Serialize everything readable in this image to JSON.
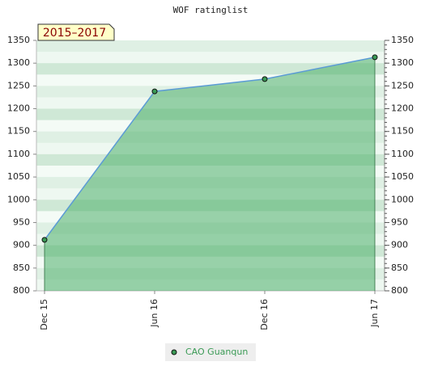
{
  "chart_data": {
    "type": "area",
    "title": "WOF ratinglist",
    "annotation": "2015–2017",
    "categories": [
      "Dec 15",
      "Jun 16",
      "Dec 16",
      "Jun 17"
    ],
    "series": [
      {
        "name": "CAO Guanqun",
        "color": "#5b9bd5",
        "values": [
          912,
          1238,
          1265,
          1313
        ]
      }
    ],
    "ylim": [
      800,
      1350
    ],
    "yticks": [
      800,
      850,
      900,
      950,
      1000,
      1050,
      1100,
      1150,
      1200,
      1250,
      1300,
      1350
    ],
    "right_axis": true,
    "grid": false
  }
}
